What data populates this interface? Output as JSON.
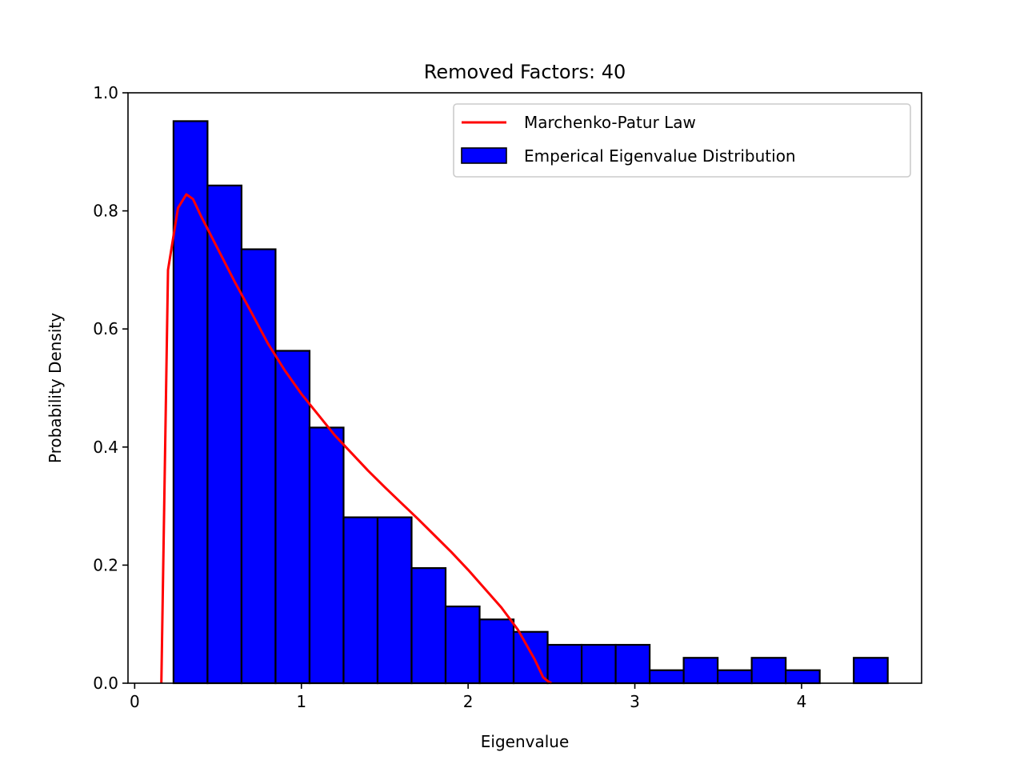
{
  "chart_data": {
    "type": "histogram",
    "title": "Removed Factors: 40",
    "xlabel": "Eigenvalue",
    "ylabel": "Probability Density",
    "xlim": [
      -0.04,
      4.72
    ],
    "ylim": [
      0.0,
      1.0
    ],
    "xticks": [
      0,
      1,
      2,
      3,
      4
    ],
    "xtick_labels": [
      "0",
      "1",
      "2",
      "3",
      "4"
    ],
    "yticks": [
      0.0,
      0.2,
      0.4,
      0.6,
      0.8,
      1.0
    ],
    "ytick_labels": [
      "0.0",
      "0.2",
      "0.4",
      "0.6",
      "0.8",
      "1.0"
    ],
    "grid": false,
    "legend_position": "upper right",
    "bins": [
      {
        "x0": 0.233,
        "x1": 0.437,
        "value": 0.952
      },
      {
        "x0": 0.437,
        "x1": 0.641,
        "value": 0.843
      },
      {
        "x0": 0.641,
        "x1": 0.845,
        "value": 0.735
      },
      {
        "x0": 0.845,
        "x1": 1.049,
        "value": 0.563
      },
      {
        "x0": 1.049,
        "x1": 1.253,
        "value": 0.433
      },
      {
        "x0": 1.253,
        "x1": 1.457,
        "value": 0.281
      },
      {
        "x0": 1.457,
        "x1": 1.661,
        "value": 0.281
      },
      {
        "x0": 1.661,
        "x1": 1.865,
        "value": 0.195
      },
      {
        "x0": 1.865,
        "x1": 2.069,
        "value": 0.13
      },
      {
        "x0": 2.069,
        "x1": 2.273,
        "value": 0.108
      },
      {
        "x0": 2.273,
        "x1": 2.477,
        "value": 0.087
      },
      {
        "x0": 2.477,
        "x1": 2.681,
        "value": 0.065
      },
      {
        "x0": 2.681,
        "x1": 2.885,
        "value": 0.065
      },
      {
        "x0": 2.885,
        "x1": 3.089,
        "value": 0.065
      },
      {
        "x0": 3.089,
        "x1": 3.293,
        "value": 0.022
      },
      {
        "x0": 3.293,
        "x1": 3.497,
        "value": 0.043
      },
      {
        "x0": 3.497,
        "x1": 3.701,
        "value": 0.022
      },
      {
        "x0": 3.701,
        "x1": 3.905,
        "value": 0.043
      },
      {
        "x0": 3.905,
        "x1": 4.109,
        "value": 0.022
      },
      {
        "x0": 4.109,
        "x1": 4.313,
        "value": 0.0
      },
      {
        "x0": 4.313,
        "x1": 4.517,
        "value": 0.043
      }
    ],
    "curve": {
      "x": [
        0.16,
        0.2,
        0.26,
        0.31,
        0.35,
        0.4,
        0.5,
        0.6,
        0.7,
        0.8,
        0.9,
        1.0,
        1.1,
        1.2,
        1.3,
        1.4,
        1.5,
        1.6,
        1.7,
        1.8,
        1.9,
        2.0,
        2.1,
        2.2,
        2.3,
        2.4,
        2.45,
        2.48,
        2.5
      ],
      "y": [
        0.0,
        0.7,
        0.805,
        0.828,
        0.82,
        0.79,
        0.735,
        0.68,
        0.628,
        0.575,
        0.53,
        0.49,
        0.455,
        0.42,
        0.39,
        0.36,
        0.332,
        0.305,
        0.278,
        0.25,
        0.222,
        0.192,
        0.16,
        0.128,
        0.09,
        0.04,
        0.01,
        0.003,
        0.0
      ]
    },
    "series": [
      {
        "name": "Marchenko-Patur Law",
        "type": "line",
        "color": "#ff0000"
      },
      {
        "name": "Emperical Eigenvalue Distribution",
        "type": "bar",
        "color": "#0000ff",
        "edgecolor": "#000000"
      }
    ]
  }
}
